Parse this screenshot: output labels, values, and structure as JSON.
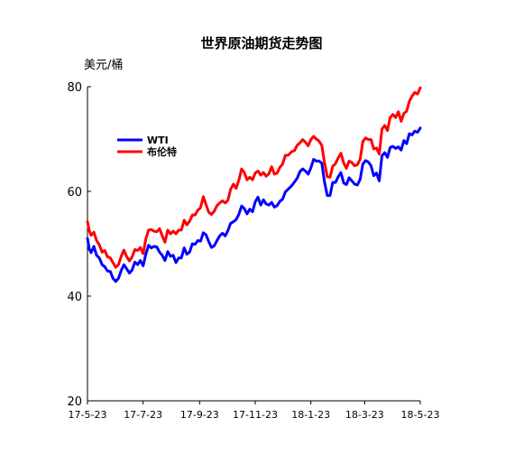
{
  "chart_data": {
    "type": "line",
    "title": "世界原油期货走势图",
    "unit_label": "美元/桶",
    "xlabel": "",
    "ylabel": "",
    "ylim": [
      20,
      80
    ],
    "yticks": [
      20,
      40,
      60,
      80
    ],
    "xlim": [
      "2017-05-23",
      "2018-05-23"
    ],
    "xticks": [
      {
        "date": "2017-05-23",
        "label": "17-5-23"
      },
      {
        "date": "2017-07-23",
        "label": "17-7-23"
      },
      {
        "date": "2017-09-23",
        "label": "17-9-23"
      },
      {
        "date": "2017-11-23",
        "label": "17-11-23"
      },
      {
        "date": "2018-01-23",
        "label": "18-1-23"
      },
      {
        "date": "2018-03-23",
        "label": "18-3-23"
      },
      {
        "date": "2018-05-23",
        "label": "18-5-23"
      }
    ],
    "grid": false,
    "legend_position": "top-left",
    "series": [
      {
        "name": "WTI",
        "color": "#0000ff",
        "points": [
          [
            "2017-05-23",
            51.0
          ],
          [
            "2017-05-25",
            49.0
          ],
          [
            "2017-05-27",
            48.3
          ],
          [
            "2017-05-30",
            49.5
          ],
          [
            "2017-06-02",
            47.8
          ],
          [
            "2017-06-05",
            47.3
          ],
          [
            "2017-06-08",
            46.0
          ],
          [
            "2017-06-11",
            45.6
          ],
          [
            "2017-06-14",
            44.8
          ],
          [
            "2017-06-17",
            44.7
          ],
          [
            "2017-06-20",
            43.4
          ],
          [
            "2017-06-23",
            42.8
          ],
          [
            "2017-06-26",
            43.4
          ],
          [
            "2017-06-29",
            44.9
          ],
          [
            "2017-07-02",
            46.0
          ],
          [
            "2017-07-05",
            45.2
          ],
          [
            "2017-07-08",
            44.4
          ],
          [
            "2017-07-11",
            45.0
          ],
          [
            "2017-07-14",
            46.5
          ],
          [
            "2017-07-17",
            46.0
          ],
          [
            "2017-07-20",
            46.8
          ],
          [
            "2017-07-23",
            45.8
          ],
          [
            "2017-07-26",
            48.0
          ],
          [
            "2017-07-29",
            49.7
          ],
          [
            "2017-08-01",
            49.2
          ],
          [
            "2017-08-04",
            49.5
          ],
          [
            "2017-08-07",
            49.4
          ],
          [
            "2017-08-10",
            48.4
          ],
          [
            "2017-08-13",
            47.8
          ],
          [
            "2017-08-16",
            46.8
          ],
          [
            "2017-08-19",
            48.5
          ],
          [
            "2017-08-22",
            47.6
          ],
          [
            "2017-08-25",
            47.8
          ],
          [
            "2017-08-28",
            46.4
          ],
          [
            "2017-08-31",
            47.3
          ],
          [
            "2017-09-03",
            47.3
          ],
          [
            "2017-09-06",
            49.2
          ],
          [
            "2017-09-09",
            48.0
          ],
          [
            "2017-09-12",
            48.4
          ],
          [
            "2017-09-15",
            50.0
          ],
          [
            "2017-09-18",
            49.9
          ],
          [
            "2017-09-21",
            50.6
          ],
          [
            "2017-09-24",
            50.5
          ],
          [
            "2017-09-27",
            52.1
          ],
          [
            "2017-09-30",
            51.7
          ],
          [
            "2017-10-03",
            50.4
          ],
          [
            "2017-10-06",
            49.3
          ],
          [
            "2017-10-09",
            49.6
          ],
          [
            "2017-10-12",
            50.6
          ],
          [
            "2017-10-15",
            51.5
          ],
          [
            "2017-10-18",
            52.0
          ],
          [
            "2017-10-21",
            51.5
          ],
          [
            "2017-10-24",
            52.5
          ],
          [
            "2017-10-27",
            53.9
          ],
          [
            "2017-10-30",
            54.2
          ],
          [
            "2017-11-02",
            54.6
          ],
          [
            "2017-11-05",
            55.6
          ],
          [
            "2017-11-08",
            57.2
          ],
          [
            "2017-11-11",
            56.7
          ],
          [
            "2017-11-14",
            55.7
          ],
          [
            "2017-11-17",
            56.6
          ],
          [
            "2017-11-20",
            56.1
          ],
          [
            "2017-11-23",
            58.0
          ],
          [
            "2017-11-26",
            58.9
          ],
          [
            "2017-11-29",
            57.4
          ],
          [
            "2017-12-02",
            58.4
          ],
          [
            "2017-12-05",
            57.6
          ],
          [
            "2017-12-08",
            57.4
          ],
          [
            "2017-12-11",
            57.9
          ],
          [
            "2017-12-14",
            57.0
          ],
          [
            "2017-12-17",
            57.3
          ],
          [
            "2017-12-20",
            58.1
          ],
          [
            "2017-12-23",
            58.5
          ],
          [
            "2017-12-26",
            59.9
          ],
          [
            "2017-12-29",
            60.4
          ],
          [
            "2018-01-02",
            61.1
          ],
          [
            "2018-01-05",
            61.8
          ],
          [
            "2018-01-08",
            62.5
          ],
          [
            "2018-01-11",
            63.8
          ],
          [
            "2018-01-14",
            64.3
          ],
          [
            "2018-01-17",
            63.9
          ],
          [
            "2018-01-20",
            63.3
          ],
          [
            "2018-01-23",
            64.5
          ],
          [
            "2018-01-26",
            66.1
          ],
          [
            "2018-01-29",
            65.8
          ],
          [
            "2018-02-01",
            65.8
          ],
          [
            "2018-02-04",
            65.4
          ],
          [
            "2018-02-07",
            61.8
          ],
          [
            "2018-02-10",
            59.2
          ],
          [
            "2018-02-13",
            59.2
          ],
          [
            "2018-02-16",
            61.7
          ],
          [
            "2018-02-19",
            61.7
          ],
          [
            "2018-02-22",
            62.8
          ],
          [
            "2018-02-25",
            63.6
          ],
          [
            "2018-02-28",
            61.6
          ],
          [
            "2018-03-03",
            61.3
          ],
          [
            "2018-03-06",
            62.6
          ],
          [
            "2018-03-09",
            62.0
          ],
          [
            "2018-03-12",
            61.4
          ],
          [
            "2018-03-15",
            61.2
          ],
          [
            "2018-03-18",
            62.3
          ],
          [
            "2018-03-21",
            65.2
          ],
          [
            "2018-03-24",
            65.9
          ],
          [
            "2018-03-27",
            65.6
          ],
          [
            "2018-03-30",
            64.9
          ],
          [
            "2018-04-02",
            63.0
          ],
          [
            "2018-04-05",
            63.5
          ],
          [
            "2018-04-08",
            62.0
          ],
          [
            "2018-04-11",
            66.8
          ],
          [
            "2018-04-14",
            67.4
          ],
          [
            "2018-04-17",
            66.5
          ],
          [
            "2018-04-20",
            68.4
          ],
          [
            "2018-04-23",
            68.6
          ],
          [
            "2018-04-26",
            68.2
          ],
          [
            "2018-04-29",
            68.5
          ],
          [
            "2018-05-02",
            67.9
          ],
          [
            "2018-05-05",
            69.7
          ],
          [
            "2018-05-08",
            69.1
          ],
          [
            "2018-05-11",
            71.0
          ],
          [
            "2018-05-14",
            70.8
          ],
          [
            "2018-05-17",
            71.5
          ],
          [
            "2018-05-20",
            71.3
          ],
          [
            "2018-05-23",
            72.1
          ]
        ]
      },
      {
        "name": "布伦特",
        "color": "#ff0000",
        "points": [
          [
            "2017-05-23",
            54.2
          ],
          [
            "2017-05-25",
            52.5
          ],
          [
            "2017-05-27",
            51.6
          ],
          [
            "2017-05-30",
            52.2
          ],
          [
            "2017-06-02",
            50.6
          ],
          [
            "2017-06-05",
            49.8
          ],
          [
            "2017-06-08",
            48.4
          ],
          [
            "2017-06-11",
            48.7
          ],
          [
            "2017-06-14",
            47.5
          ],
          [
            "2017-06-17",
            47.3
          ],
          [
            "2017-06-20",
            46.4
          ],
          [
            "2017-06-23",
            45.5
          ],
          [
            "2017-06-26",
            46.0
          ],
          [
            "2017-06-29",
            47.6
          ],
          [
            "2017-07-02",
            48.8
          ],
          [
            "2017-07-05",
            47.5
          ],
          [
            "2017-07-08",
            46.7
          ],
          [
            "2017-07-11",
            47.5
          ],
          [
            "2017-07-14",
            48.9
          ],
          [
            "2017-07-17",
            48.7
          ],
          [
            "2017-07-20",
            49.3
          ],
          [
            "2017-07-23",
            48.1
          ],
          [
            "2017-07-26",
            50.9
          ],
          [
            "2017-07-29",
            52.6
          ],
          [
            "2017-08-01",
            52.7
          ],
          [
            "2017-08-04",
            52.4
          ],
          [
            "2017-08-07",
            52.3
          ],
          [
            "2017-08-10",
            52.9
          ],
          [
            "2017-08-13",
            51.5
          ],
          [
            "2017-08-16",
            50.3
          ],
          [
            "2017-08-19",
            52.6
          ],
          [
            "2017-08-22",
            51.9
          ],
          [
            "2017-08-25",
            52.4
          ],
          [
            "2017-08-28",
            51.9
          ],
          [
            "2017-08-31",
            52.6
          ],
          [
            "2017-09-03",
            52.6
          ],
          [
            "2017-09-06",
            54.5
          ],
          [
            "2017-09-09",
            53.6
          ],
          [
            "2017-09-12",
            54.3
          ],
          [
            "2017-09-15",
            55.5
          ],
          [
            "2017-09-18",
            55.5
          ],
          [
            "2017-09-21",
            56.4
          ],
          [
            "2017-09-24",
            56.9
          ],
          [
            "2017-09-27",
            59.0
          ],
          [
            "2017-09-30",
            57.5
          ],
          [
            "2017-10-03",
            56.0
          ],
          [
            "2017-10-06",
            55.6
          ],
          [
            "2017-10-09",
            56.2
          ],
          [
            "2017-10-12",
            57.3
          ],
          [
            "2017-10-15",
            57.8
          ],
          [
            "2017-10-18",
            58.2
          ],
          [
            "2017-10-21",
            57.8
          ],
          [
            "2017-10-24",
            58.3
          ],
          [
            "2017-10-27",
            60.4
          ],
          [
            "2017-10-30",
            61.4
          ],
          [
            "2017-11-02",
            60.6
          ],
          [
            "2017-11-05",
            62.1
          ],
          [
            "2017-11-08",
            64.3
          ],
          [
            "2017-11-11",
            63.6
          ],
          [
            "2017-11-14",
            62.2
          ],
          [
            "2017-11-17",
            62.7
          ],
          [
            "2017-11-20",
            62.2
          ],
          [
            "2017-11-23",
            63.5
          ],
          [
            "2017-11-26",
            63.9
          ],
          [
            "2017-11-29",
            63.1
          ],
          [
            "2017-12-02",
            63.6
          ],
          [
            "2017-12-05",
            62.9
          ],
          [
            "2017-12-08",
            63.4
          ],
          [
            "2017-12-11",
            64.7
          ],
          [
            "2017-12-14",
            63.3
          ],
          [
            "2017-12-17",
            63.5
          ],
          [
            "2017-12-20",
            64.6
          ],
          [
            "2017-12-23",
            65.2
          ],
          [
            "2017-12-26",
            66.9
          ],
          [
            "2017-12-29",
            66.9
          ],
          [
            "2018-01-02",
            67.6
          ],
          [
            "2018-01-05",
            67.8
          ],
          [
            "2018-01-08",
            68.8
          ],
          [
            "2018-01-11",
            69.3
          ],
          [
            "2018-01-14",
            69.9
          ],
          [
            "2018-01-17",
            69.4
          ],
          [
            "2018-01-20",
            68.7
          ],
          [
            "2018-01-23",
            69.9
          ],
          [
            "2018-01-26",
            70.5
          ],
          [
            "2018-01-29",
            70.0
          ],
          [
            "2018-02-01",
            69.6
          ],
          [
            "2018-02-04",
            68.8
          ],
          [
            "2018-02-07",
            65.5
          ],
          [
            "2018-02-10",
            62.8
          ],
          [
            "2018-02-13",
            62.7
          ],
          [
            "2018-02-16",
            64.8
          ],
          [
            "2018-02-19",
            65.3
          ],
          [
            "2018-02-22",
            66.4
          ],
          [
            "2018-02-25",
            67.3
          ],
          [
            "2018-02-28",
            65.4
          ],
          [
            "2018-03-03",
            64.4
          ],
          [
            "2018-03-06",
            65.8
          ],
          [
            "2018-03-09",
            65.5
          ],
          [
            "2018-03-12",
            64.9
          ],
          [
            "2018-03-15",
            65.1
          ],
          [
            "2018-03-18",
            66.1
          ],
          [
            "2018-03-21",
            69.5
          ],
          [
            "2018-03-24",
            70.2
          ],
          [
            "2018-03-27",
            69.9
          ],
          [
            "2018-03-30",
            69.9
          ],
          [
            "2018-04-02",
            68.1
          ],
          [
            "2018-04-05",
            68.3
          ],
          [
            "2018-04-08",
            67.1
          ],
          [
            "2018-04-11",
            71.9
          ],
          [
            "2018-04-14",
            72.6
          ],
          [
            "2018-04-17",
            71.6
          ],
          [
            "2018-04-20",
            74.1
          ],
          [
            "2018-04-23",
            74.7
          ],
          [
            "2018-04-26",
            74.1
          ],
          [
            "2018-04-29",
            75.2
          ],
          [
            "2018-05-02",
            73.4
          ],
          [
            "2018-05-05",
            74.9
          ],
          [
            "2018-05-08",
            75.3
          ],
          [
            "2018-05-11",
            77.2
          ],
          [
            "2018-05-14",
            78.2
          ],
          [
            "2018-05-17",
            78.9
          ],
          [
            "2018-05-20",
            78.6
          ],
          [
            "2018-05-23",
            79.8
          ]
        ]
      }
    ]
  }
}
